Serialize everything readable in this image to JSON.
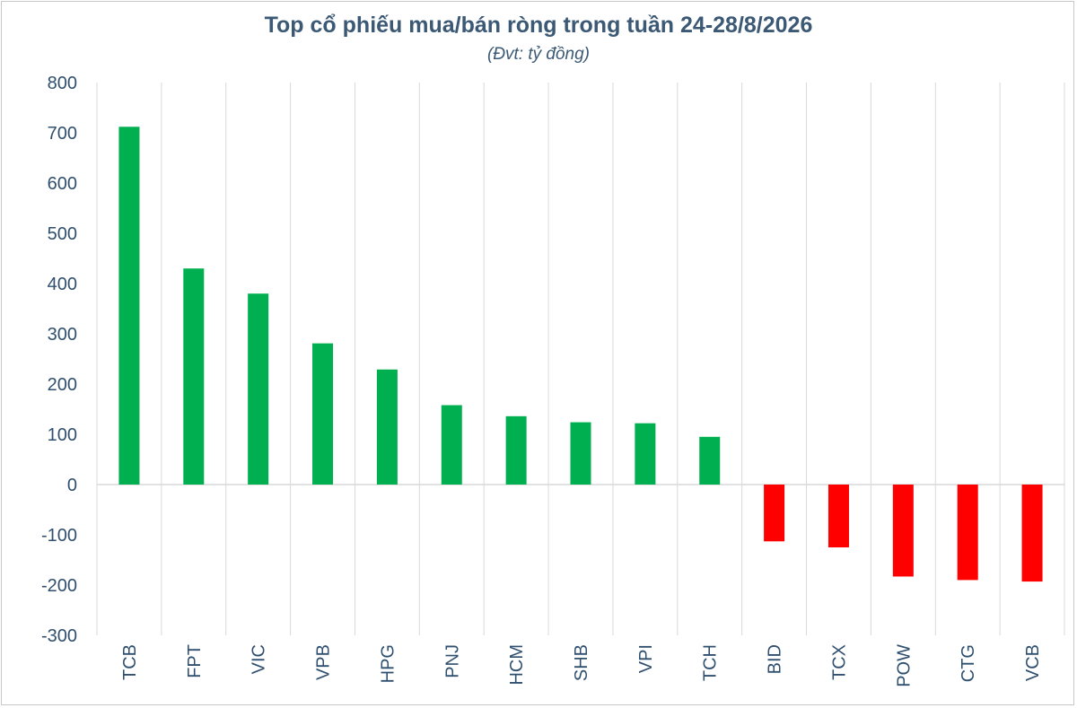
{
  "chart_data": {
    "type": "bar",
    "title": "Top cổ phiếu mua/bán ròng trong tuần 24-28/8/2026",
    "subtitle": "(Đvt: tỷ đồng)",
    "categories": [
      "TCB",
      "FPT",
      "VIC",
      "VPB",
      "HPG",
      "PNJ",
      "HCM",
      "SHB",
      "VPI",
      "TCH",
      "BID",
      "TCX",
      "POW",
      "CTG",
      "VCB"
    ],
    "values": [
      712,
      430,
      380,
      281,
      229,
      158,
      136,
      124,
      122,
      95,
      -113,
      -125,
      -183,
      -190,
      -193
    ],
    "ylim": [
      -300,
      800
    ],
    "yticks": [
      800,
      700,
      600,
      500,
      400,
      300,
      200,
      100,
      0,
      -100,
      -200,
      -300
    ],
    "grid": "vertical",
    "colors": {
      "positive": "#00b050",
      "negative": "#ff0000",
      "text": "#3b5975"
    }
  }
}
